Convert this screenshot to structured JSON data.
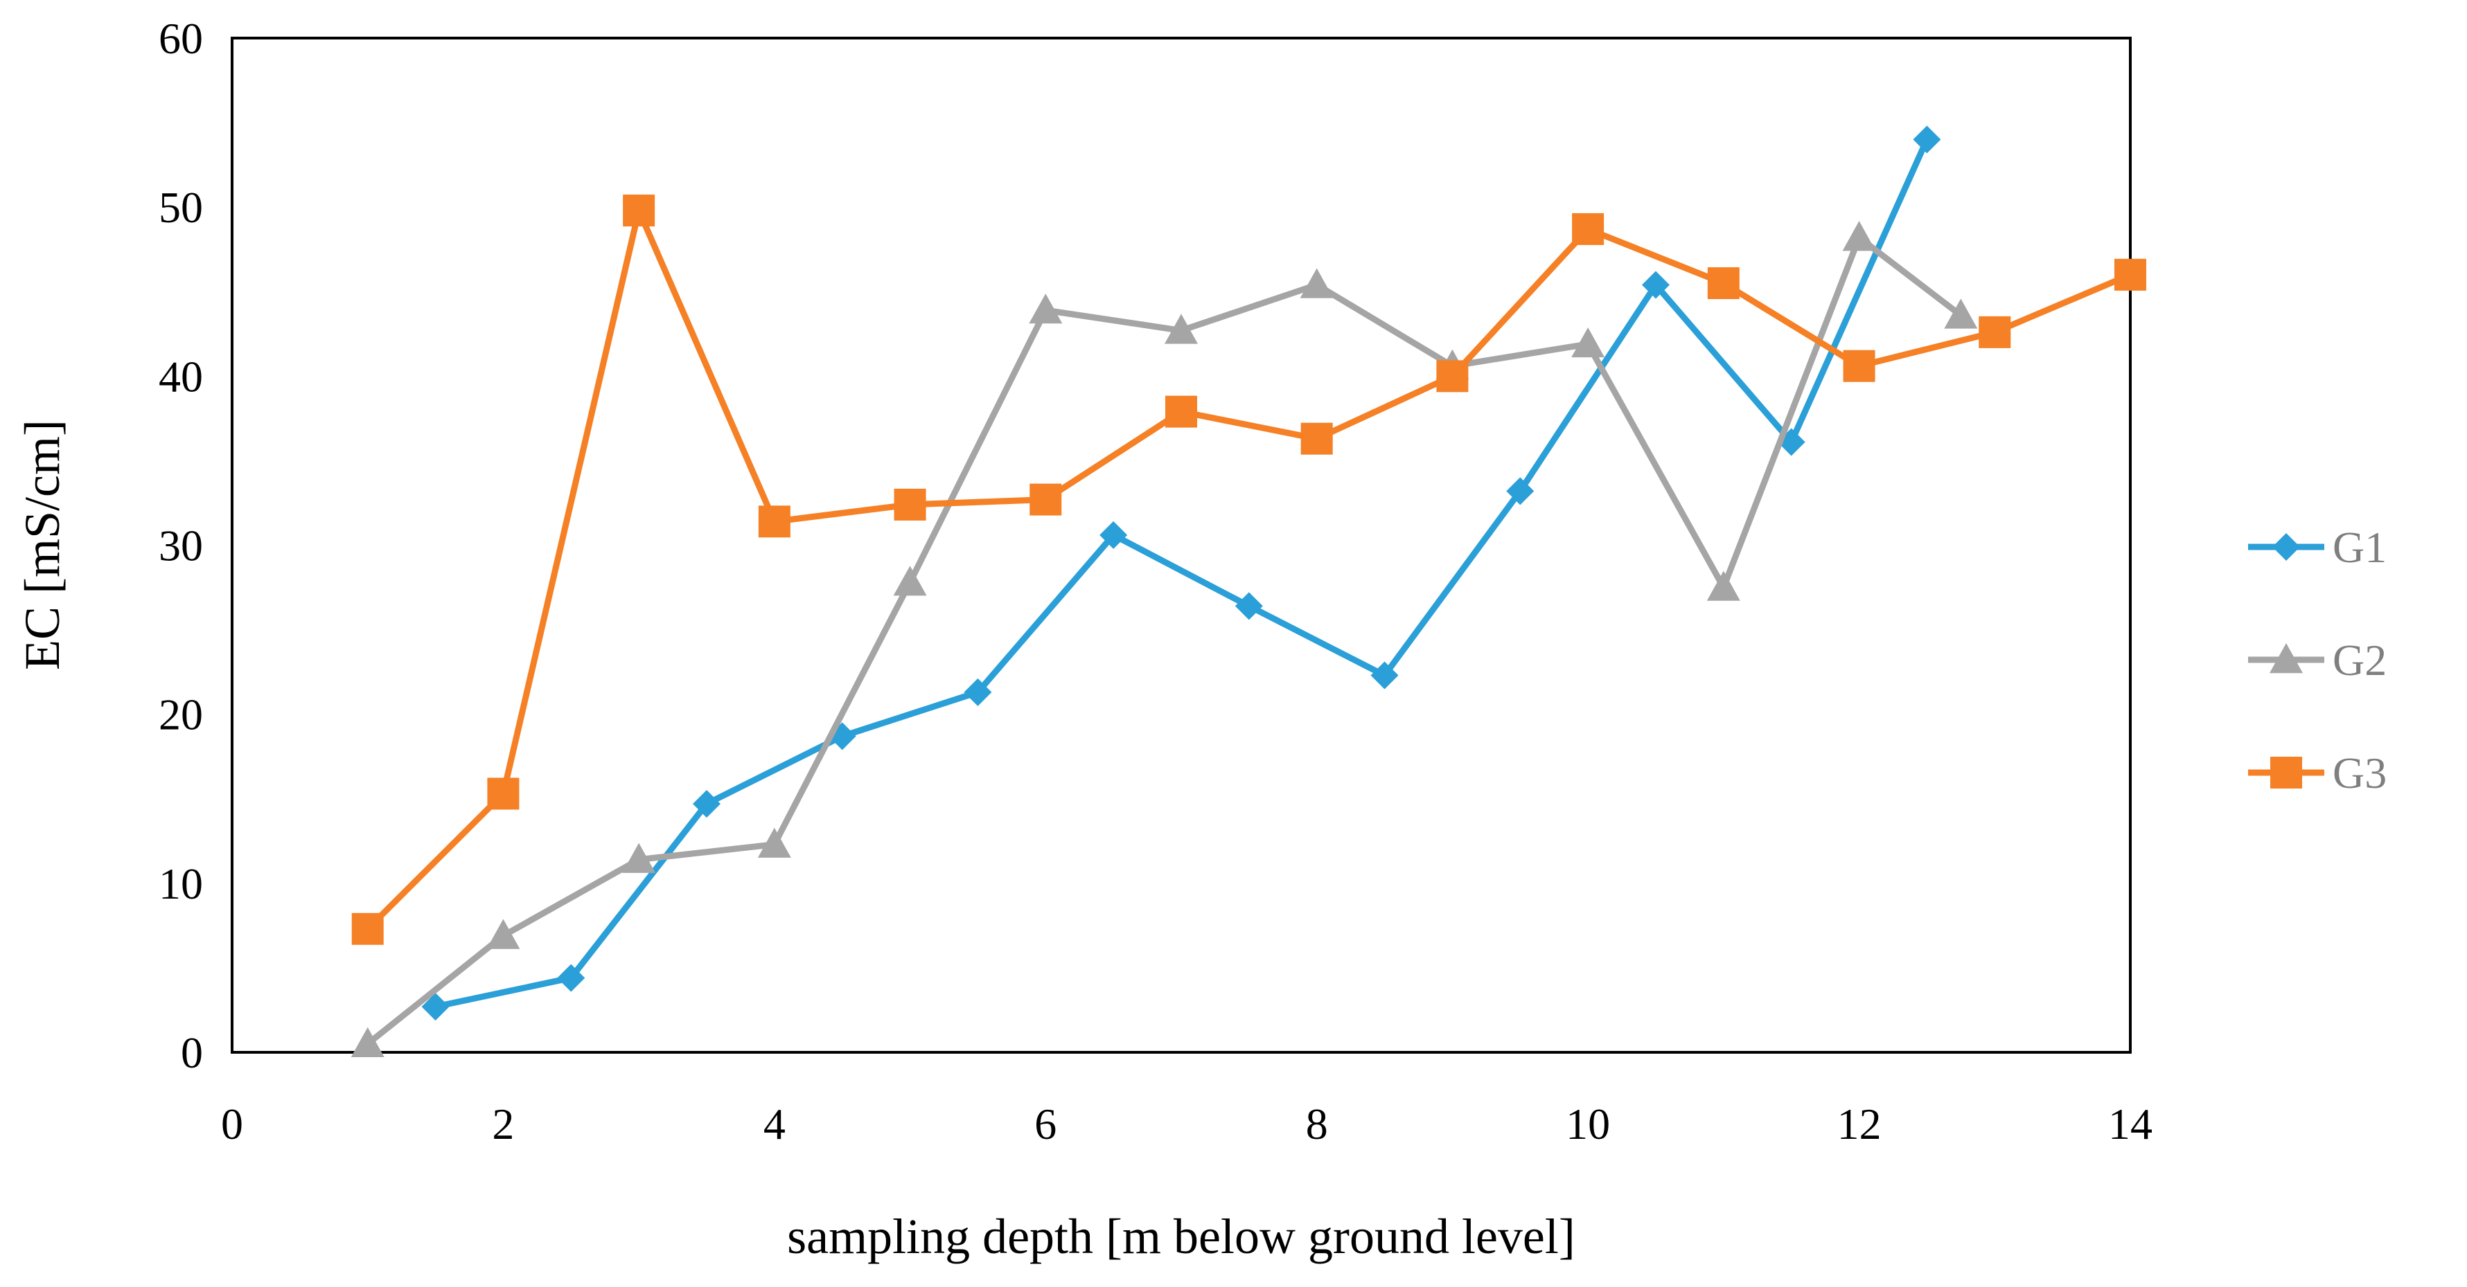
{
  "chart_data": {
    "type": "line",
    "title": "",
    "xlabel": "sampling depth [m below ground level]",
    "ylabel": "EC [mS/cm]",
    "xlim": [
      0,
      14
    ],
    "ylim": [
      0,
      60
    ],
    "xticks": [
      0,
      2,
      4,
      6,
      8,
      10,
      12,
      14
    ],
    "yticks": [
      0,
      10,
      20,
      30,
      40,
      50,
      60
    ],
    "grid": false,
    "legend_position": "right",
    "series": [
      {
        "name": "G1",
        "color": "#2a9fd8",
        "marker": "diamond",
        "points": [
          [
            1.5,
            2.7
          ],
          [
            2.5,
            4.4
          ],
          [
            3.5,
            14.7
          ],
          [
            4.5,
            18.7
          ],
          [
            5.5,
            21.3
          ],
          [
            6.5,
            30.6
          ],
          [
            7.5,
            26.4
          ],
          [
            8.5,
            22.3
          ],
          [
            9.5,
            33.2
          ],
          [
            10.5,
            45.4
          ],
          [
            11.5,
            36.1
          ],
          [
            12.5,
            54.0
          ]
        ]
      },
      {
        "name": "G2",
        "color": "#a5a5a5",
        "marker": "triangle",
        "points": [
          [
            1,
            0.5
          ],
          [
            2,
            6.9
          ],
          [
            3,
            11.4
          ],
          [
            4,
            12.3
          ],
          [
            5,
            27.8
          ],
          [
            6,
            43.9
          ],
          [
            7,
            42.7
          ],
          [
            8,
            45.4
          ],
          [
            9,
            40.6
          ],
          [
            10,
            41.9
          ],
          [
            11,
            27.5
          ],
          [
            12,
            48.2
          ],
          [
            12.75,
            43.6
          ]
        ]
      },
      {
        "name": "G3",
        "color": "#f58025",
        "marker": "square",
        "points": [
          [
            1,
            7.3
          ],
          [
            2,
            15.3
          ],
          [
            3,
            49.8
          ],
          [
            4,
            31.4
          ],
          [
            5,
            32.4
          ],
          [
            6,
            32.7
          ],
          [
            7,
            37.9
          ],
          [
            8,
            36.3
          ],
          [
            9,
            40.0
          ],
          [
            10,
            48.7
          ],
          [
            11,
            45.5
          ],
          [
            12,
            40.6
          ],
          [
            13,
            42.6
          ],
          [
            14,
            46.0
          ]
        ]
      }
    ]
  }
}
